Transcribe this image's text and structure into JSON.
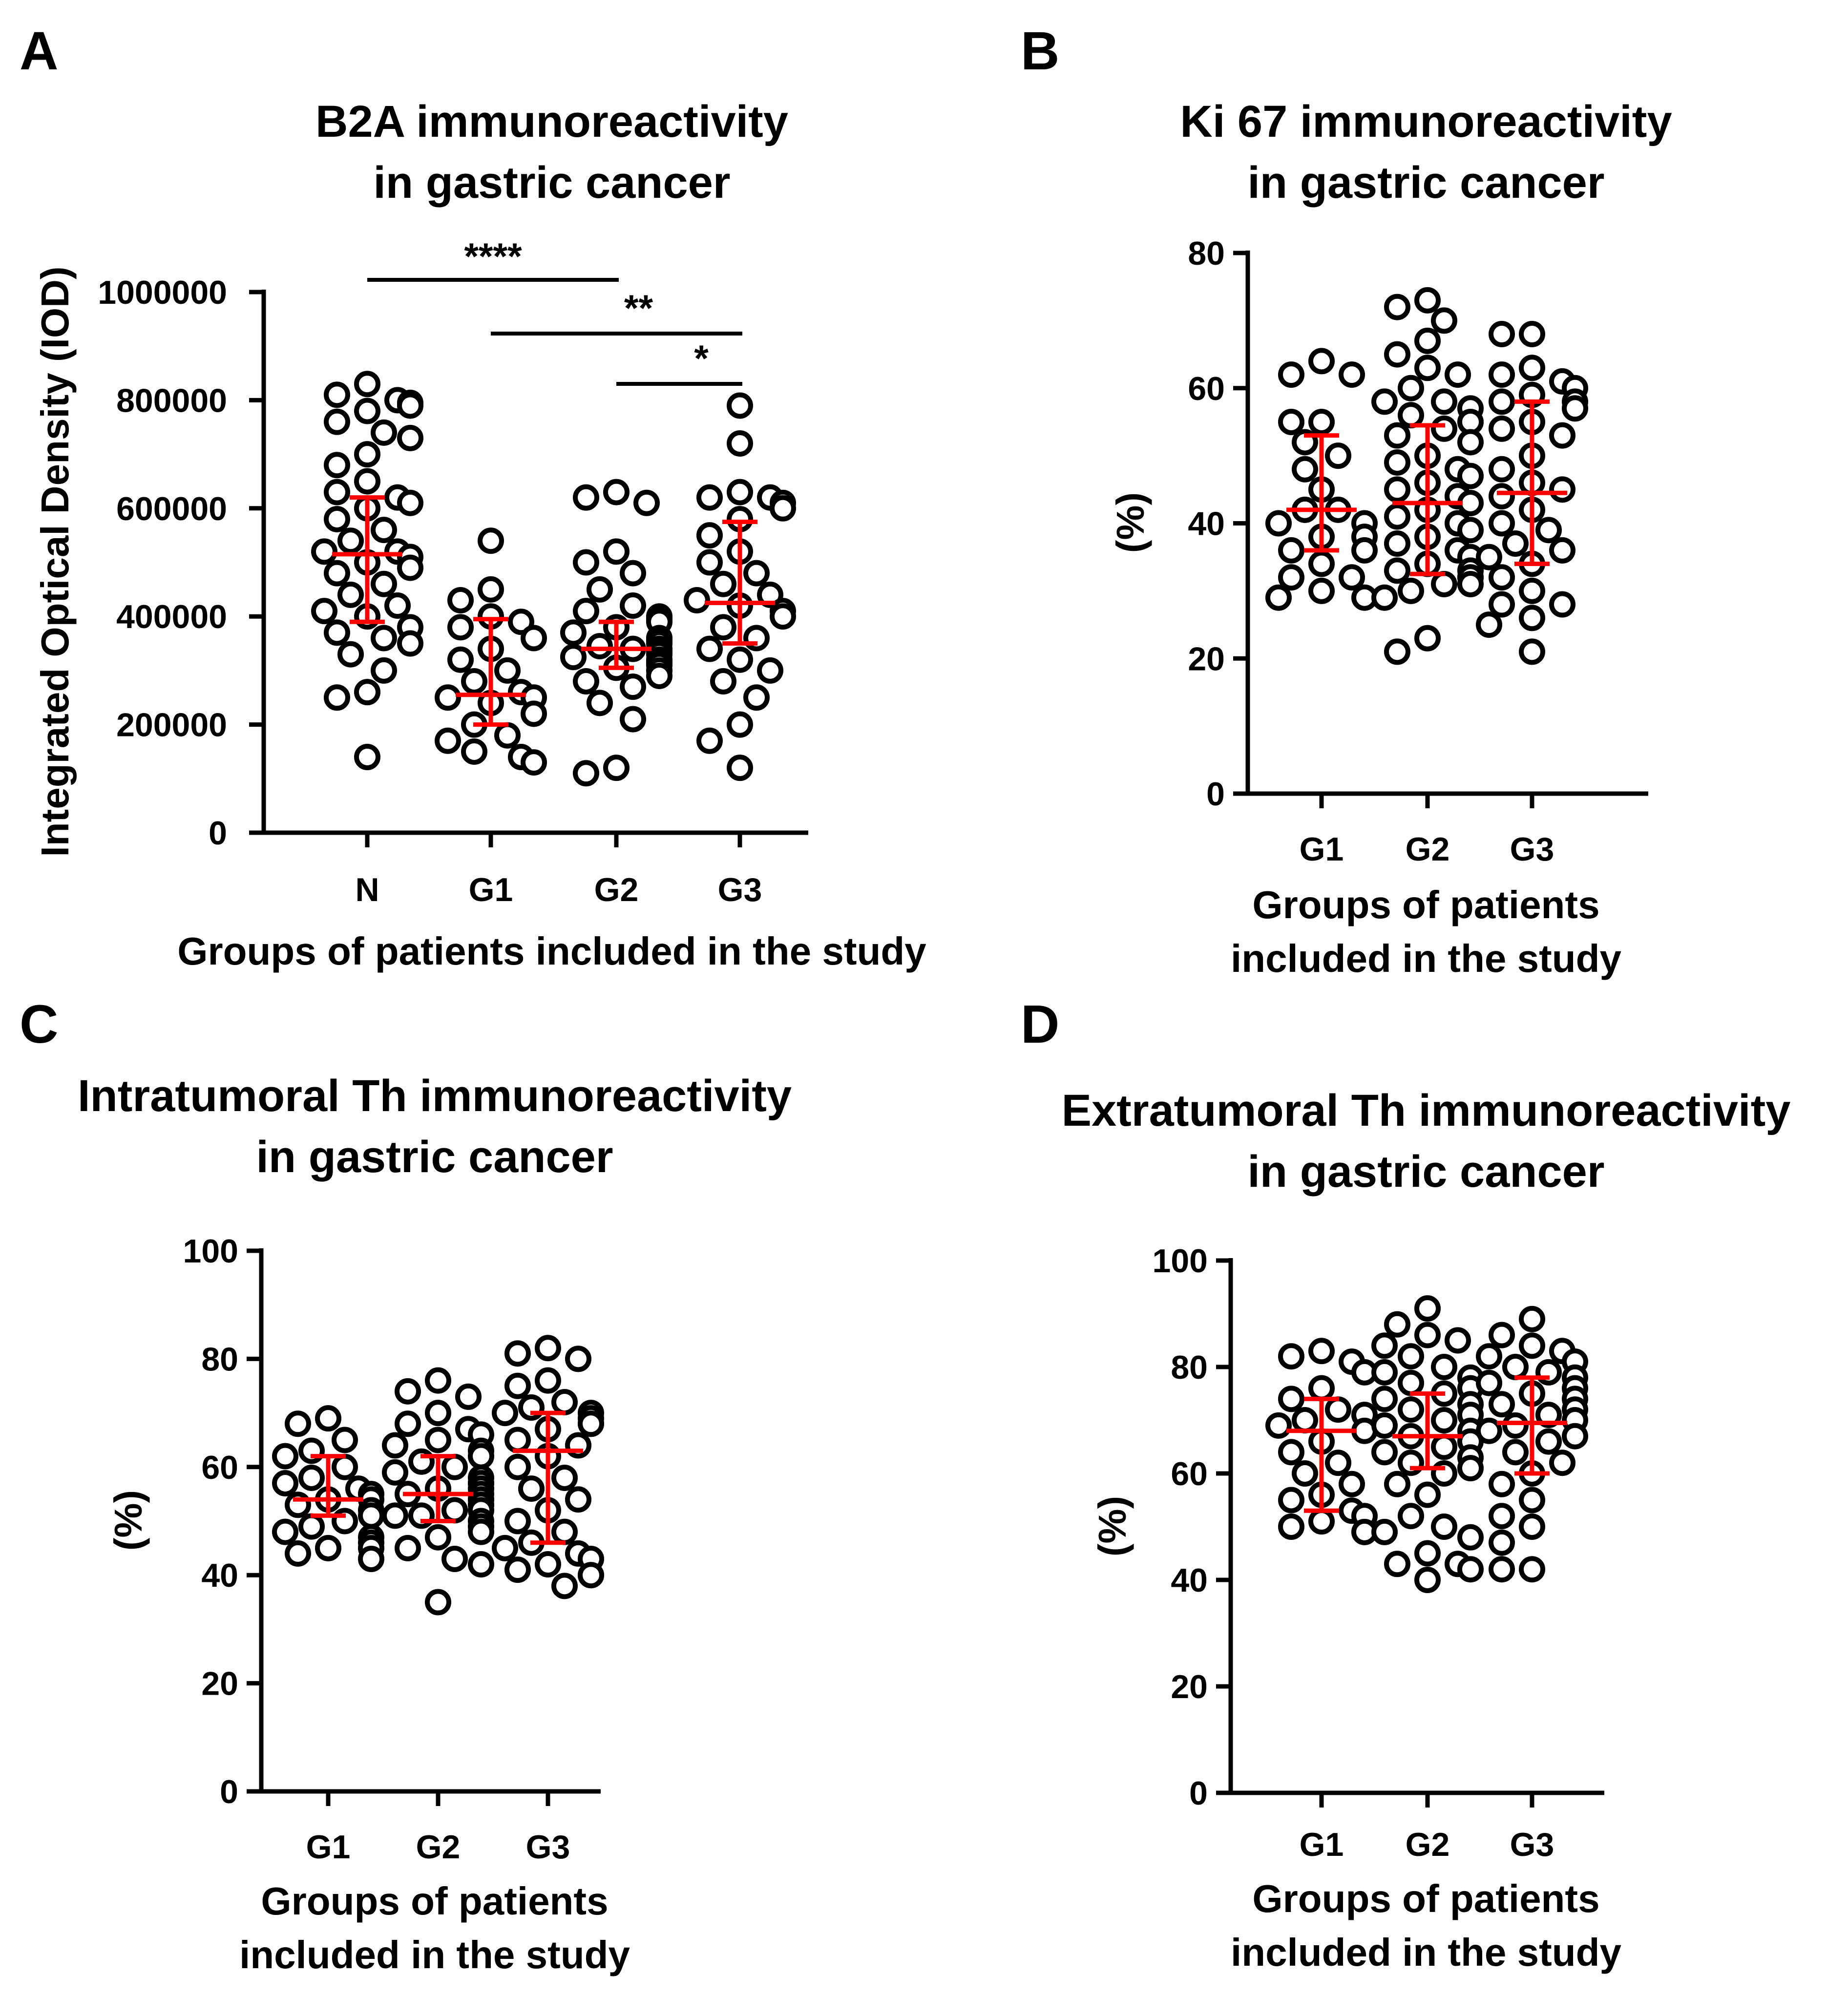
{
  "figure": {
    "panels": [
      {
        "letter": "A",
        "title_lines": [
          "B2A immunoreactivity",
          "in gastric cancer"
        ],
        "ylabel": "Integrated Optical Density (IOD)",
        "xlabel_lines": [
          "Groups of patients included in the study"
        ],
        "yticks": [
          "0",
          "200000",
          "400000",
          "600000",
          "800000",
          "1000000"
        ],
        "significance": [
          {
            "label": "****",
            "from": "N",
            "to": "G2"
          },
          {
            "label": "**",
            "from": "G1",
            "to": "G3"
          },
          {
            "label": "*",
            "from": "G2",
            "to": "G3"
          }
        ]
      },
      {
        "letter": "B",
        "title_lines": [
          "Ki 67 immunoreactivity",
          "in gastric cancer"
        ],
        "ylabel": "(%)",
        "xlabel_lines": [
          "Groups of patients",
          "included in the study"
        ],
        "yticks": [
          "0",
          "20",
          "40",
          "60",
          "80"
        ],
        "significance": []
      },
      {
        "letter": "C",
        "title_lines": [
          "Intratumoral Th immunoreactivity",
          "in gastric cancer"
        ],
        "ylabel": "(%)",
        "xlabel_lines": [
          "Groups of patients",
          "included in the study"
        ],
        "yticks": [
          "0",
          "20",
          "40",
          "60",
          "80",
          "100"
        ],
        "significance": []
      },
      {
        "letter": "D",
        "title_lines": [
          "Extratumoral Th immunoreactivity",
          "in gastric cancer"
        ],
        "ylabel": "(%)",
        "xlabel_lines": [
          "Groups of patients",
          "included in the study"
        ],
        "yticks": [
          "0",
          "20",
          "40",
          "60",
          "80",
          "100"
        ],
        "significance": []
      }
    ]
  },
  "chart_data": [
    {
      "type": "scatter",
      "panel": "A",
      "title": "B2A immunoreactivity in gastric cancer",
      "xlabel": "Groups of patients included in the study",
      "ylabel": "Integrated Optical Density (IOD)",
      "ylim": [
        0,
        1000000
      ],
      "categories": [
        "N",
        "G1",
        "G2",
        "G3"
      ],
      "series": [
        {
          "name": "N",
          "values": [
            830000,
            810000,
            800000,
            795000,
            790000,
            780000,
            760000,
            740000,
            730000,
            700000,
            680000,
            650000,
            630000,
            620000,
            610000,
            600000,
            580000,
            560000,
            540000,
            520000,
            520000,
            510000,
            500000,
            490000,
            480000,
            460000,
            440000,
            420000,
            410000,
            400000,
            380000,
            370000,
            360000,
            350000,
            330000,
            300000,
            260000,
            250000,
            140000
          ],
          "mean": 515000,
          "sd_low": 390000,
          "sd_high": 620000
        },
        {
          "name": "G1",
          "values": [
            540000,
            450000,
            430000,
            400000,
            390000,
            380000,
            360000,
            340000,
            320000,
            300000,
            280000,
            260000,
            250000,
            250000,
            240000,
            220000,
            200000,
            180000,
            170000,
            150000,
            140000,
            130000
          ],
          "mean": 255000,
          "sd_low": 200000,
          "sd_high": 395000
        },
        {
          "name": "G2",
          "values": [
            630000,
            620000,
            610000,
            520000,
            500000,
            480000,
            450000,
            420000,
            410000,
            400000,
            395000,
            390000,
            380000,
            370000,
            360000,
            355000,
            350000,
            345000,
            340000,
            340000,
            335000,
            330000,
            325000,
            320000,
            315000,
            310000,
            305000,
            300000,
            290000,
            280000,
            270000,
            240000,
            210000,
            120000,
            110000
          ],
          "mean": 340000,
          "sd_low": 305000,
          "sd_high": 390000
        },
        {
          "name": "G3",
          "values": [
            790000,
            720000,
            630000,
            620000,
            620000,
            610000,
            600000,
            580000,
            550000,
            520000,
            500000,
            480000,
            460000,
            440000,
            430000,
            420000,
            410000,
            400000,
            380000,
            360000,
            340000,
            320000,
            300000,
            280000,
            250000,
            200000,
            170000,
            120000
          ],
          "mean": 425000,
          "sd_low": 350000,
          "sd_high": 575000
        }
      ]
    },
    {
      "type": "scatter",
      "panel": "B",
      "title": "Ki 67 immunoreactivity in gastric cancer",
      "xlabel": "Groups of patients included in the study",
      "ylabel": "(%)",
      "ylim": [
        0,
        80
      ],
      "categories": [
        "G1",
        "G2",
        "G3"
      ],
      "series": [
        {
          "name": "G1",
          "values": [
            64,
            62,
            62,
            55,
            55,
            52,
            50,
            48,
            45,
            42,
            42,
            40,
            40,
            38,
            38,
            36,
            36,
            34,
            32,
            32,
            30,
            29,
            29
          ],
          "mean": 42,
          "sd_low": 36,
          "sd_high": 53
        },
        {
          "name": "G2",
          "values": [
            73,
            72,
            70,
            67,
            65,
            63,
            62,
            60,
            58,
            58,
            57,
            56,
            55,
            54,
            53,
            52,
            50,
            49,
            48,
            47,
            46,
            45,
            44,
            43,
            42,
            41,
            40,
            39,
            38,
            37,
            36,
            35,
            34,
            33,
            33,
            32,
            32,
            31,
            31,
            30,
            29,
            23,
            21
          ],
          "mean": 43,
          "sd_low": 32.5,
          "sd_high": 54.5
        },
        {
          "name": "G3",
          "values": [
            68,
            68,
            63,
            62,
            61,
            60,
            59,
            58,
            58,
            57,
            55,
            54,
            53,
            50,
            48,
            46,
            45,
            44,
            42,
            40,
            39,
            37,
            36,
            35,
            34,
            32,
            30,
            28,
            28,
            26,
            25,
            21
          ],
          "mean": 44.5,
          "sd_low": 34,
          "sd_high": 58
        }
      ]
    },
    {
      "type": "scatter",
      "panel": "C",
      "title": "Intratumoral Th immunoreactivity in gastric cancer",
      "xlabel": "Groups of patients included in the study",
      "ylabel": "(%)",
      "ylim": [
        0,
        100
      ],
      "categories": [
        "G1",
        "G2",
        "G3"
      ],
      "series": [
        {
          "name": "G1",
          "values": [
            69,
            68,
            65,
            63,
            62,
            60,
            58,
            57,
            56,
            55,
            54,
            54,
            53,
            52,
            51,
            50,
            49,
            48,
            47,
            46,
            45,
            45,
            44,
            43
          ],
          "mean": 54,
          "sd_low": 51,
          "sd_high": 62
        },
        {
          "name": "G2",
          "values": [
            76,
            74,
            73,
            70,
            68,
            67,
            66,
            65,
            64,
            63,
            62,
            61,
            60,
            59,
            58,
            57,
            57,
            56,
            56,
            55,
            55,
            54,
            54,
            53,
            53,
            52,
            52,
            51,
            51,
            50,
            49,
            48,
            47,
            45,
            43,
            42,
            35
          ],
          "mean": 55,
          "sd_low": 50,
          "sd_high": 62
        },
        {
          "name": "G3",
          "values": [
            82,
            81,
            80,
            76,
            75,
            72,
            71,
            70,
            70,
            69,
            68,
            68,
            67,
            65,
            64,
            62,
            60,
            58,
            56,
            54,
            52,
            50,
            48,
            46,
            45,
            44,
            43,
            42,
            41,
            40,
            40,
            38
          ],
          "mean": 63,
          "sd_low": 46,
          "sd_high": 70
        }
      ]
    },
    {
      "type": "scatter",
      "panel": "D",
      "title": "Extratumoral Th immunoreactivity in gastric cancer",
      "xlabel": "Groups of patients included in the study",
      "ylabel": "(%)",
      "ylim": [
        0,
        100
      ],
      "categories": [
        "G1",
        "G2",
        "G3"
      ],
      "series": [
        {
          "name": "G1",
          "values": [
            83,
            82,
            81,
            79,
            76,
            74,
            72,
            71,
            70,
            69,
            68,
            66,
            64,
            62,
            60,
            58,
            56,
            55,
            53,
            52,
            51,
            50,
            49
          ],
          "mean": 68,
          "sd_low": 53,
          "sd_high": 74
        },
        {
          "name": "G2",
          "values": [
            91,
            88,
            86,
            85,
            84,
            82,
            80,
            79,
            78,
            77,
            76,
            75,
            74,
            73,
            72,
            71,
            70,
            69,
            68,
            67,
            66,
            65,
            64,
            63,
            62,
            61,
            60,
            58,
            56,
            52,
            50,
            49,
            48,
            45,
            43,
            43,
            42,
            40
          ],
          "mean": 67,
          "sd_low": 61,
          "sd_high": 75
        },
        {
          "name": "G3",
          "values": [
            89,
            86,
            84,
            83,
            82,
            81,
            80,
            79,
            78,
            77,
            76,
            75,
            74,
            73,
            72,
            71,
            70,
            69,
            68,
            67,
            66,
            64,
            62,
            60,
            58,
            55,
            52,
            50,
            47,
            42,
            42
          ],
          "mean": 69.5,
          "sd_low": 60,
          "sd_high": 78
        }
      ]
    }
  ]
}
